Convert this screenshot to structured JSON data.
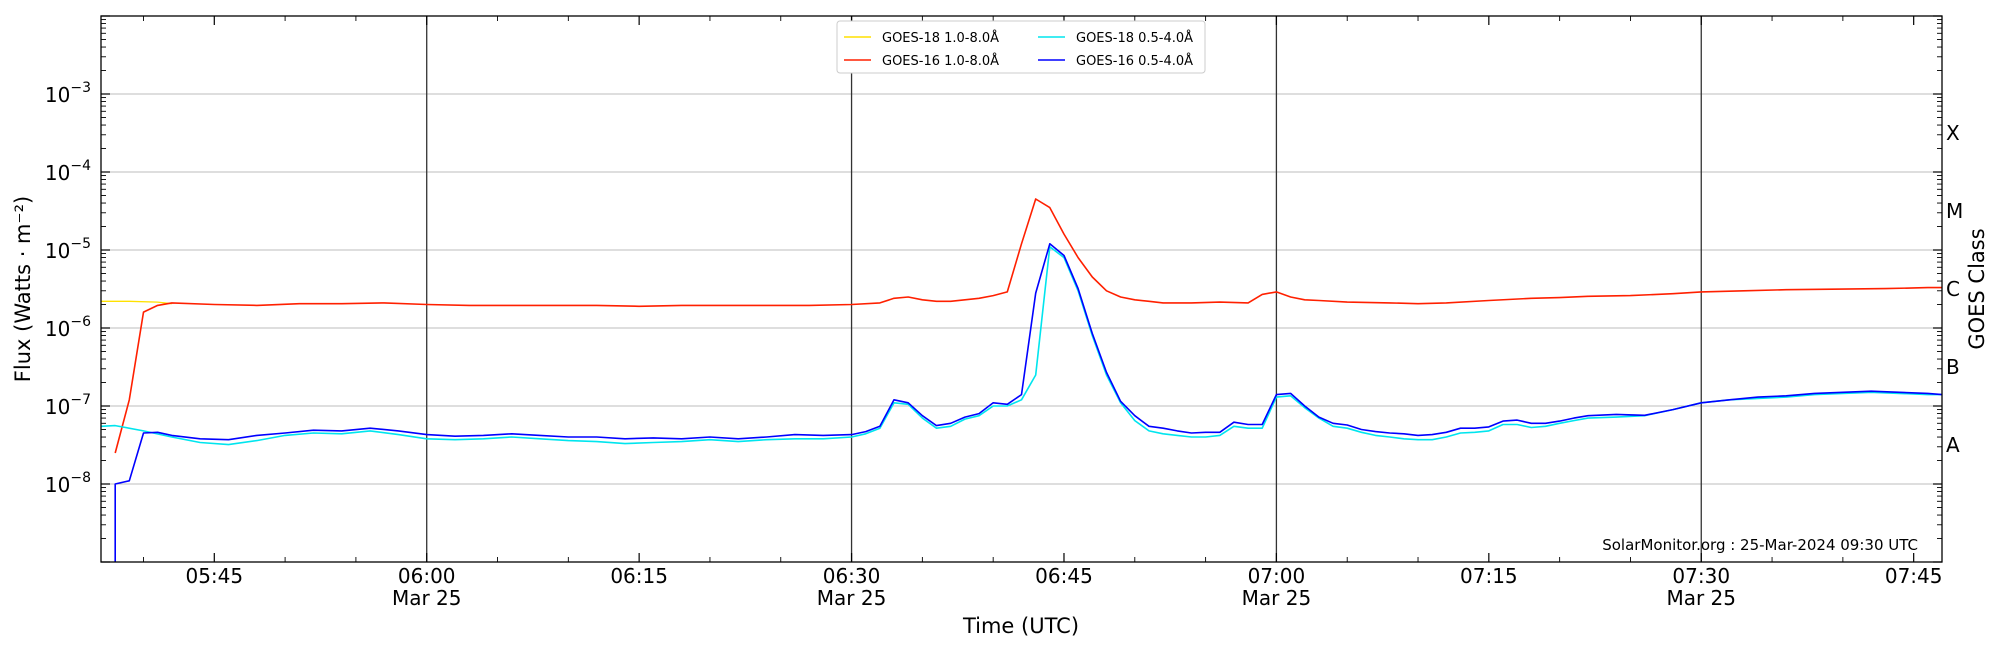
{
  "chart_data": {
    "type": "line",
    "title": "",
    "xlabel": "Time (UTC)",
    "ylabel": "Flux (Watts · m⁻²)",
    "y2label": "GOES Class",
    "yscale": "log",
    "ylim": [
      1e-09,
      0.01
    ],
    "xlim": [
      "05:37",
      "07:47"
    ],
    "grid": "horizontal at each decade",
    "legend_position": "top-center",
    "watermark": "SolarMonitor.org : 25-Mar-2024 09:30 UTC",
    "x_ticks": [
      {
        "time": "05:45",
        "label": "05:45",
        "date": ""
      },
      {
        "time": "06:00",
        "label": "06:00",
        "date": "Mar 25"
      },
      {
        "time": "06:15",
        "label": "06:15",
        "date": ""
      },
      {
        "time": "06:30",
        "label": "06:30",
        "date": "Mar 25"
      },
      {
        "time": "06:45",
        "label": "06:45",
        "date": ""
      },
      {
        "time": "07:00",
        "label": "07:00",
        "date": "Mar 25"
      },
      {
        "time": "07:15",
        "label": "07:15",
        "date": ""
      },
      {
        "time": "07:30",
        "label": "07:30",
        "date": "Mar 25"
      },
      {
        "time": "07:45",
        "label": "07:45",
        "date": ""
      }
    ],
    "vertical_markers": [
      "06:00",
      "06:30",
      "07:00",
      "07:30"
    ],
    "y_ticks": [
      {
        "value": 0.001,
        "base": "10",
        "exp": "−3"
      },
      {
        "value": 0.0001,
        "base": "10",
        "exp": "−4"
      },
      {
        "value": 1e-05,
        "base": "10",
        "exp": "−5"
      },
      {
        "value": 1e-06,
        "base": "10",
        "exp": "−6"
      },
      {
        "value": 1e-07,
        "base": "10",
        "exp": "−7"
      },
      {
        "value": 1e-08,
        "base": "10",
        "exp": "−8"
      }
    ],
    "goes_classes": [
      {
        "label": "X",
        "value": 0.000316
      },
      {
        "label": "M",
        "value": 3.16e-05
      },
      {
        "label": "C",
        "value": 3.16e-06
      },
      {
        "label": "B",
        "value": 3.16e-07
      },
      {
        "label": "A",
        "value": 3.16e-08
      }
    ],
    "series": [
      {
        "name": "GOES-18 1.0-8.0Å",
        "color": "#FFE100",
        "x": [
          "05:37",
          "05:39",
          "05:41",
          "05:42"
        ],
        "y": [
          2.2e-06,
          2.2e-06,
          2.15e-06,
          2.05e-06
        ]
      },
      {
        "name": "GOES-16 1.0-8.0Å",
        "color": "#FF2000",
        "x": [
          "05:38",
          "05:39",
          "05:40",
          "05:41",
          "05:42",
          "05:45",
          "05:48",
          "05:51",
          "05:54",
          "05:57",
          "06:00",
          "06:03",
          "06:06",
          "06:09",
          "06:12",
          "06:15",
          "06:18",
          "06:21",
          "06:24",
          "06:27",
          "06:30",
          "06:32",
          "06:33",
          "06:34",
          "06:35",
          "06:36",
          "06:37",
          "06:38",
          "06:39",
          "06:40",
          "06:41",
          "06:42",
          "06:43",
          "06:44",
          "06:45",
          "06:46",
          "06:47",
          "06:48",
          "06:49",
          "06:50",
          "06:51",
          "06:52",
          "06:54",
          "06:56",
          "06:58",
          "06:59",
          "07:00",
          "07:01",
          "07:02",
          "07:03",
          "07:05",
          "07:08",
          "07:10",
          "07:12",
          "07:15",
          "07:18",
          "07:20",
          "07:22",
          "07:25",
          "07:28",
          "07:30",
          "07:33",
          "07:36",
          "07:40",
          "07:43",
          "07:46",
          "07:47"
        ],
        "y": [
          2.5e-08,
          1.2e-07,
          1.6e-06,
          1.95e-06,
          2.1e-06,
          2e-06,
          1.95e-06,
          2.05e-06,
          2.05e-06,
          2.1e-06,
          2e-06,
          1.95e-06,
          1.95e-06,
          1.95e-06,
          1.95e-06,
          1.9e-06,
          1.95e-06,
          1.95e-06,
          1.95e-06,
          1.95e-06,
          2e-06,
          2.1e-06,
          2.4e-06,
          2.5e-06,
          2.3e-06,
          2.2e-06,
          2.2e-06,
          2.3e-06,
          2.4e-06,
          2.6e-06,
          2.9e-06,
          1.2e-05,
          4.5e-05,
          3.5e-05,
          1.6e-05,
          8e-06,
          4.5e-06,
          3e-06,
          2.5e-06,
          2.3e-06,
          2.2e-06,
          2.1e-06,
          2.1e-06,
          2.15e-06,
          2.1e-06,
          2.7e-06,
          2.9e-06,
          2.5e-06,
          2.3e-06,
          2.25e-06,
          2.15e-06,
          2.1e-06,
          2.05e-06,
          2.1e-06,
          2.25e-06,
          2.4e-06,
          2.45e-06,
          2.55e-06,
          2.6e-06,
          2.75e-06,
          2.9e-06,
          3e-06,
          3.1e-06,
          3.15e-06,
          3.2e-06,
          3.3e-06,
          3.3e-06
        ]
      },
      {
        "name": "GOES-18 0.5-4.0Å",
        "color": "#00E5EE",
        "x": [
          "05:37",
          "05:38",
          "05:40",
          "05:42",
          "05:44",
          "05:46",
          "05:48",
          "05:50",
          "05:52",
          "05:54",
          "05:56",
          "05:58",
          "06:00",
          "06:02",
          "06:04",
          "06:06",
          "06:08",
          "06:10",
          "06:12",
          "06:14",
          "06:16",
          "06:18",
          "06:20",
          "06:22",
          "06:24",
          "06:26",
          "06:28",
          "06:30",
          "06:31",
          "06:32",
          "06:33",
          "06:34",
          "06:35",
          "06:36",
          "06:37",
          "06:38",
          "06:39",
          "06:40",
          "06:41",
          "06:42",
          "06:43",
          "06:44",
          "06:45",
          "06:46",
          "06:47",
          "06:48",
          "06:49",
          "06:50",
          "06:51",
          "06:52",
          "06:53",
          "06:54",
          "06:55",
          "06:56",
          "06:57",
          "06:58",
          "06:59",
          "07:00",
          "07:01",
          "07:02",
          "07:03",
          "07:04",
          "07:05",
          "07:06",
          "07:07",
          "07:08",
          "07:09",
          "07:10",
          "07:11",
          "07:12",
          "07:13",
          "07:14",
          "07:15",
          "07:16",
          "07:17",
          "07:18",
          "07:19",
          "07:20",
          "07:21",
          "07:22",
          "07:24",
          "07:26",
          "07:28",
          "07:30",
          "07:32",
          "07:34",
          "07:36",
          "07:38",
          "07:40",
          "07:42",
          "07:44",
          "07:46",
          "07:47"
        ],
        "y": [
          5.5e-08,
          5.6e-08,
          4.8e-08,
          4e-08,
          3.4e-08,
          3.2e-08,
          3.6e-08,
          4.2e-08,
          4.5e-08,
          4.4e-08,
          4.8e-08,
          4.3e-08,
          3.8e-08,
          3.7e-08,
          3.8e-08,
          4e-08,
          3.8e-08,
          3.6e-08,
          3.5e-08,
          3.3e-08,
          3.4e-08,
          3.5e-08,
          3.7e-08,
          3.5e-08,
          3.7e-08,
          3.8e-08,
          3.8e-08,
          4e-08,
          4.4e-08,
          5.2e-08,
          1.1e-07,
          1.05e-07,
          7e-08,
          5.2e-08,
          5.5e-08,
          6.8e-08,
          7.5e-08,
          1e-07,
          1e-07,
          1.2e-07,
          2.5e-07,
          1.1e-05,
          8e-06,
          3e-06,
          8e-07,
          2.5e-07,
          1.1e-07,
          6.5e-08,
          4.8e-08,
          4.4e-08,
          4.2e-08,
          4e-08,
          4e-08,
          4.2e-08,
          5.5e-08,
          5.2e-08,
          5.2e-08,
          1.3e-07,
          1.35e-07,
          9.5e-08,
          7e-08,
          5.5e-08,
          5.2e-08,
          4.6e-08,
          4.2e-08,
          4e-08,
          3.8e-08,
          3.7e-08,
          3.7e-08,
          4e-08,
          4.5e-08,
          4.6e-08,
          4.8e-08,
          5.8e-08,
          5.8e-08,
          5.3e-08,
          5.5e-08,
          6e-08,
          6.5e-08,
          7e-08,
          7.2e-08,
          7.5e-08,
          9e-08,
          1.1e-07,
          1.2e-07,
          1.25e-07,
          1.3e-07,
          1.4e-07,
          1.45e-07,
          1.5e-07,
          1.45e-07,
          1.4e-07,
          1.4e-07
        ]
      },
      {
        "name": "GOES-16 0.5-4.0Å",
        "color": "#0000FF",
        "x": [
          "05:38",
          "05:38",
          "05:39",
          "05:40",
          "05:41",
          "05:42",
          "05:44",
          "05:46",
          "05:48",
          "05:50",
          "05:52",
          "05:54",
          "05:56",
          "05:58",
          "06:00",
          "06:02",
          "06:04",
          "06:06",
          "06:08",
          "06:10",
          "06:12",
          "06:14",
          "06:16",
          "06:18",
          "06:20",
          "06:22",
          "06:24",
          "06:26",
          "06:28",
          "06:30",
          "06:31",
          "06:32",
          "06:33",
          "06:34",
          "06:35",
          "06:36",
          "06:37",
          "06:38",
          "06:39",
          "06:40",
          "06:41",
          "06:42",
          "06:43",
          "06:44",
          "06:45",
          "06:46",
          "06:47",
          "06:48",
          "06:49",
          "06:50",
          "06:51",
          "06:52",
          "06:53",
          "06:54",
          "06:55",
          "06:56",
          "06:57",
          "06:58",
          "06:59",
          "07:00",
          "07:01",
          "07:02",
          "07:03",
          "07:04",
          "07:05",
          "07:06",
          "07:07",
          "07:08",
          "07:09",
          "07:10",
          "07:11",
          "07:12",
          "07:13",
          "07:14",
          "07:15",
          "07:16",
          "07:17",
          "07:18",
          "07:19",
          "07:20",
          "07:21",
          "07:22",
          "07:24",
          "07:26",
          "07:28",
          "07:30",
          "07:32",
          "07:34",
          "07:36",
          "07:38",
          "07:40",
          "07:42",
          "07:44",
          "07:46",
          "07:47"
        ],
        "y": [
          1e-09,
          1e-08,
          1.1e-08,
          4.5e-08,
          4.6e-08,
          4.2e-08,
          3.8e-08,
          3.7e-08,
          4.2e-08,
          4.5e-08,
          4.9e-08,
          4.8e-08,
          5.2e-08,
          4.8e-08,
          4.3e-08,
          4.1e-08,
          4.2e-08,
          4.4e-08,
          4.2e-08,
          4e-08,
          4e-08,
          3.8e-08,
          3.9e-08,
          3.8e-08,
          4e-08,
          3.8e-08,
          4e-08,
          4.3e-08,
          4.2e-08,
          4.3e-08,
          4.7e-08,
          5.5e-08,
          1.2e-07,
          1.1e-07,
          7.5e-08,
          5.6e-08,
          6e-08,
          7.2e-08,
          8e-08,
          1.1e-07,
          1.05e-07,
          1.4e-07,
          2.8e-06,
          1.2e-05,
          8.5e-06,
          3.2e-06,
          8.5e-07,
          2.7e-07,
          1.15e-07,
          7.5e-08,
          5.5e-08,
          5.2e-08,
          4.8e-08,
          4.5e-08,
          4.6e-08,
          4.6e-08,
          6.2e-08,
          5.8e-08,
          5.8e-08,
          1.4e-07,
          1.45e-07,
          1e-07,
          7.2e-08,
          6e-08,
          5.7e-08,
          5e-08,
          4.7e-08,
          4.5e-08,
          4.4e-08,
          4.2e-08,
          4.3e-08,
          4.6e-08,
          5.2e-08,
          5.2e-08,
          5.4e-08,
          6.4e-08,
          6.6e-08,
          6e-08,
          6e-08,
          6.4e-08,
          7e-08,
          7.5e-08,
          7.8e-08,
          7.6e-08,
          9e-08,
          1.1e-07,
          1.2e-07,
          1.3e-07,
          1.35e-07,
          1.45e-07,
          1.5e-07,
          1.55e-07,
          1.5e-07,
          1.45e-07,
          1.4e-07
        ]
      }
    ]
  }
}
